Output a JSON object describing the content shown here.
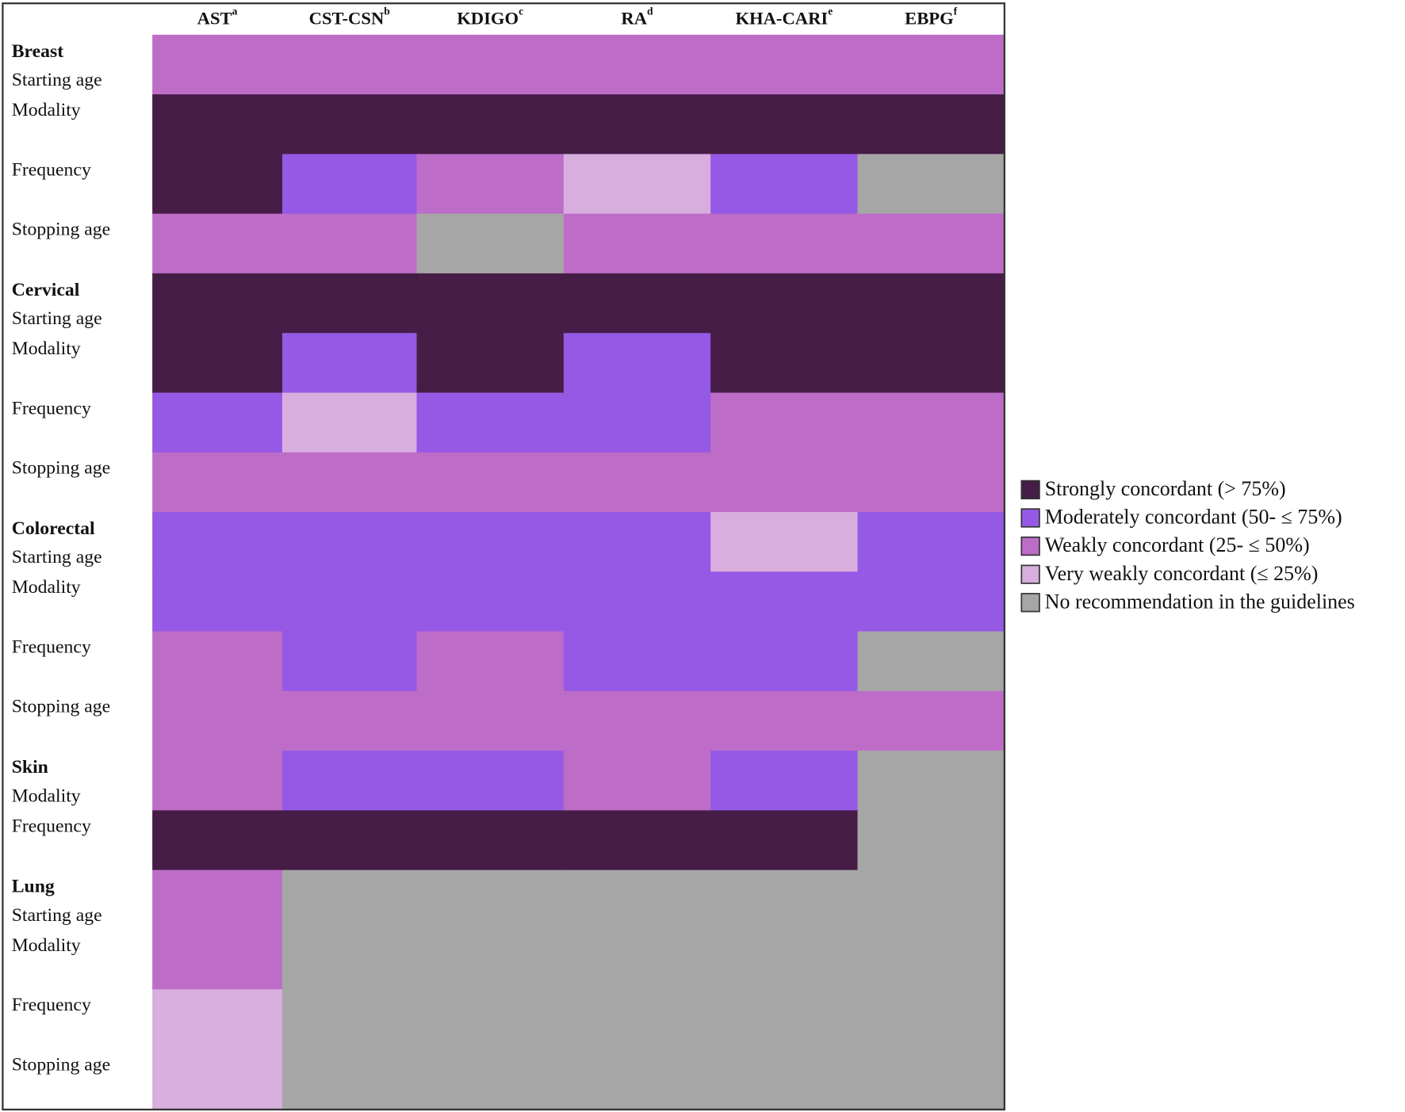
{
  "chart_data": {
    "type": "heatmap",
    "columns": [
      {
        "text": "AST",
        "sup": "a"
      },
      {
        "text": "CST-CSN",
        "sup": "b"
      },
      {
        "text": "KDIGO",
        "sup": "c"
      },
      {
        "text": "RA",
        "sup": "d"
      },
      {
        "text": "KHA-CARI",
        "sup": "e"
      },
      {
        "text": "EBPG",
        "sup": "f"
      }
    ],
    "legend": [
      {
        "label": "Strongly concordant (> 75%)",
        "color": "#461d47"
      },
      {
        "label": "Moderately concordant (50- ≤ 75%)",
        "color": "#9659e5"
      },
      {
        "label": "Weakly concordant (25- ≤ 50%)",
        "color": "#bd6dc8"
      },
      {
        "label": "Very weakly concordant (≤ 25%)",
        "color": "#d7aede"
      },
      {
        "label": "No recommendation in the guidelines",
        "color": "#a6a6a6"
      }
    ],
    "groups": [
      {
        "name": "Breast",
        "rows": [
          {
            "label": "Starting age",
            "cells": [
              2,
              2,
              2,
              2,
              2,
              2
            ]
          },
          {
            "label": "Modality",
            "cells": [
              0,
              0,
              0,
              0,
              0,
              0
            ]
          },
          {
            "label": "Frequency",
            "cells": [
              0,
              1,
              2,
              3,
              1,
              4
            ]
          },
          {
            "label": "Stopping age",
            "cells": [
              2,
              2,
              4,
              2,
              2,
              2
            ]
          }
        ]
      },
      {
        "name": "Cervical",
        "rows": [
          {
            "label": "Starting age",
            "cells": [
              0,
              0,
              0,
              0,
              0,
              0
            ]
          },
          {
            "label": "Modality",
            "cells": [
              0,
              1,
              0,
              1,
              0,
              0
            ]
          },
          {
            "label": "Frequency",
            "cells": [
              1,
              3,
              1,
              1,
              2,
              2
            ]
          },
          {
            "label": "Stopping age",
            "cells": [
              2,
              2,
              2,
              2,
              2,
              2
            ]
          }
        ]
      },
      {
        "name": "Colorectal",
        "rows": [
          {
            "label": "Starting age",
            "cells": [
              1,
              1,
              1,
              1,
              3,
              1
            ]
          },
          {
            "label": "Modality",
            "cells": [
              1,
              1,
              1,
              1,
              1,
              1
            ]
          },
          {
            "label": "Frequency",
            "cells": [
              2,
              1,
              2,
              1,
              1,
              4
            ]
          },
          {
            "label": "Stopping age",
            "cells": [
              2,
              2,
              2,
              2,
              2,
              2
            ]
          }
        ]
      },
      {
        "name": "Skin",
        "rows": [
          {
            "label": "Modality",
            "cells": [
              2,
              1,
              1,
              2,
              1,
              4
            ]
          },
          {
            "label": "Frequency",
            "cells": [
              0,
              0,
              0,
              0,
              0,
              4
            ]
          }
        ]
      },
      {
        "name": "Lung",
        "rows": [
          {
            "label": "Starting age",
            "cells": [
              2,
              4,
              4,
              4,
              4,
              4
            ]
          },
          {
            "label": "Modality",
            "cells": [
              2,
              4,
              4,
              4,
              4,
              4
            ]
          },
          {
            "label": "Frequency",
            "cells": [
              3,
              4,
              4,
              4,
              4,
              4
            ]
          },
          {
            "label": "Stopping age",
            "cells": [
              3,
              4,
              4,
              4,
              4,
              4
            ]
          }
        ]
      }
    ]
  }
}
